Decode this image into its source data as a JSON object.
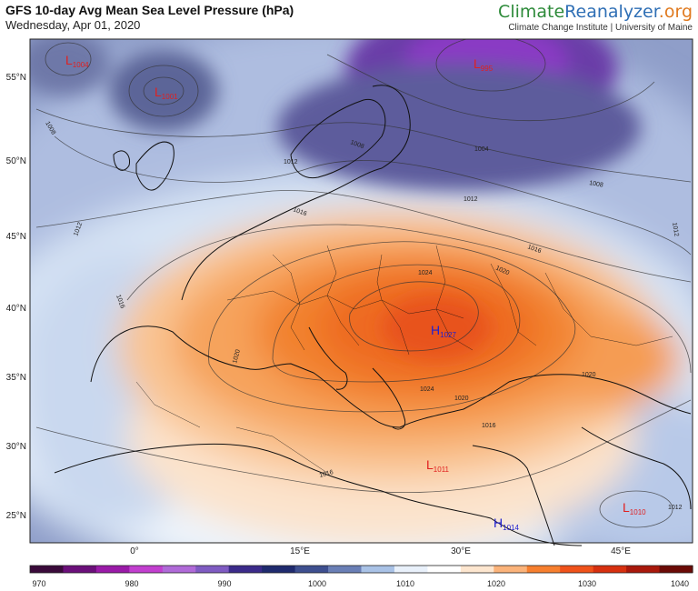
{
  "header": {
    "title": "GFS 10-day Avg Mean Sea Level Pressure (hPa)",
    "subtitle": "Wednesday, Apr 01, 2020",
    "brand_part1": "Climate",
    "brand_part2": "Reanalyzer",
    "brand_part3": ".org",
    "brand_sub": "Climate Change Institute | University of Maine"
  },
  "map": {
    "lat_labels": [
      "55°N",
      "50°N",
      "45°N",
      "40°N",
      "35°N",
      "30°N",
      "25°N"
    ],
    "lon_labels": [
      "0°",
      "15°E",
      "30°E",
      "45°E"
    ],
    "isobar_labels": [
      "1008",
      "1008",
      "1004",
      "1012",
      "1012",
      "1016",
      "1008",
      "1012",
      "1012",
      "1016",
      "1016",
      "1020",
      "1024",
      "1020",
      "1020",
      "1020",
      "1024",
      "1016",
      "1016",
      "1012"
    ],
    "pressure_centers": [
      {
        "type": "L",
        "value": "1004",
        "color": "#e02020"
      },
      {
        "type": "L",
        "value": "1001",
        "color": "#e02020"
      },
      {
        "type": "L",
        "value": "995",
        "color": "#e02020"
      },
      {
        "type": "H",
        "value": "1027",
        "color": "#2020d0"
      },
      {
        "type": "L",
        "value": "1011",
        "color": "#e02020"
      },
      {
        "type": "H",
        "value": "1014",
        "color": "#2020d0"
      },
      {
        "type": "L",
        "value": "1010",
        "color": "#e02020"
      }
    ]
  },
  "colorbar": {
    "tick_labels": [
      "970",
      "980",
      "990",
      "1000",
      "1010",
      "1020",
      "1030",
      "1040"
    ],
    "colors": [
      "#3a0a3a",
      "#6b0f7a",
      "#9a1aa8",
      "#c23fcf",
      "#b06ad8",
      "#7f5bc2",
      "#3b2a8a",
      "#1f2a6e",
      "#3e4f8f",
      "#6a7fb6",
      "#a9c2e6",
      "#e9f1fb",
      "#ffffff",
      "#fde6cf",
      "#fbb37a",
      "#f77f2e",
      "#f0521a",
      "#d7300f",
      "#a9180b",
      "#6b0a06"
    ]
  }
}
